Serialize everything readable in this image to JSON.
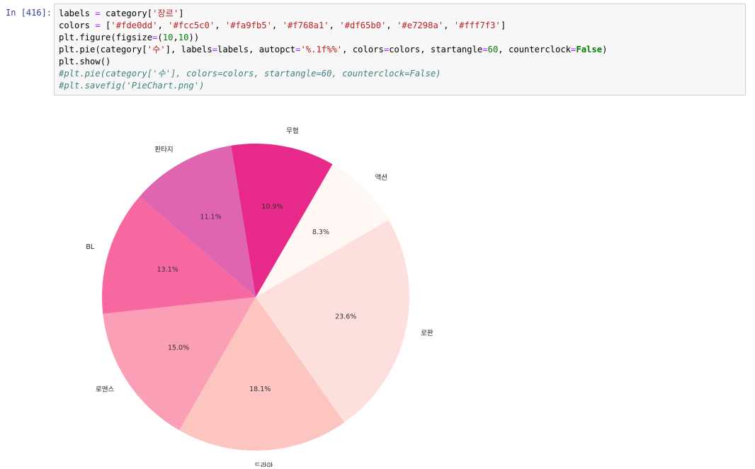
{
  "cell": {
    "prompt": "In [416]:",
    "code": {
      "line1": {
        "a": "labels ",
        "b": "=",
        "c": " category[",
        "d": "'장르'",
        "e": "]"
      },
      "line2": {
        "a": "colors ",
        "b": "=",
        "c": " [",
        "s1": "'#fde0dd'",
        "s2": "'#fcc5c0'",
        "s3": "'#fa9fb5'",
        "s4": "'#f768a1'",
        "s5": "'#df65b0'",
        "s6": "'#e7298a'",
        "s7": "'#fff7f3'",
        "sep": ", ",
        "end": "]"
      },
      "line3": {
        "a": "plt.figure(figsize",
        "b": "=",
        "c": "(",
        "n1": "10",
        "d": ",",
        "n2": "10",
        "e": "))"
      },
      "line4": {
        "a": "plt.pie(category[",
        "s1": "'수'",
        "b": "], labels",
        "eq1": "=",
        "c": "labels, autopct",
        "eq2": "=",
        "s2": "'%.1f%%'",
        "d": ", colors",
        "eq3": "=",
        "e": "colors, startangle",
        "eq4": "=",
        "n1": "60",
        "f": ", counterclock",
        "eq5": "=",
        "kw": "False",
        "g": ")"
      },
      "line5": {
        "a": "plt.show()"
      },
      "line6": {
        "a": "#plt.pie(category['수'], colors=colors, startangle=60, counterclock=False)"
      },
      "line7": {
        "a": "#plt.savefig('PieChart.png')"
      }
    }
  },
  "chart_data": {
    "type": "pie",
    "title": "",
    "startangle": 60,
    "counterclock": false,
    "slices": [
      {
        "label": "액션",
        "pct_label": "8.3%",
        "value": 8.3,
        "color": "#fff7f3"
      },
      {
        "label": "로판",
        "pct_label": "23.6%",
        "value": 23.6,
        "color": "#fde0dd"
      },
      {
        "label": "드라마",
        "pct_label": "18.1%",
        "value": 18.1,
        "color": "#fcc5c0"
      },
      {
        "label": "로맨스",
        "pct_label": "15.0%",
        "value": 15.0,
        "color": "#fa9fb5"
      },
      {
        "label": "BL",
        "pct_label": "13.1%",
        "value": 13.1,
        "color": "#f768a1"
      },
      {
        "label": "판타지",
        "pct_label": "11.1%",
        "value": 11.1,
        "color": "#df65b0"
      },
      {
        "label": "무협",
        "pct_label": "10.9%",
        "value": 10.9,
        "color": "#e7298a"
      }
    ]
  }
}
